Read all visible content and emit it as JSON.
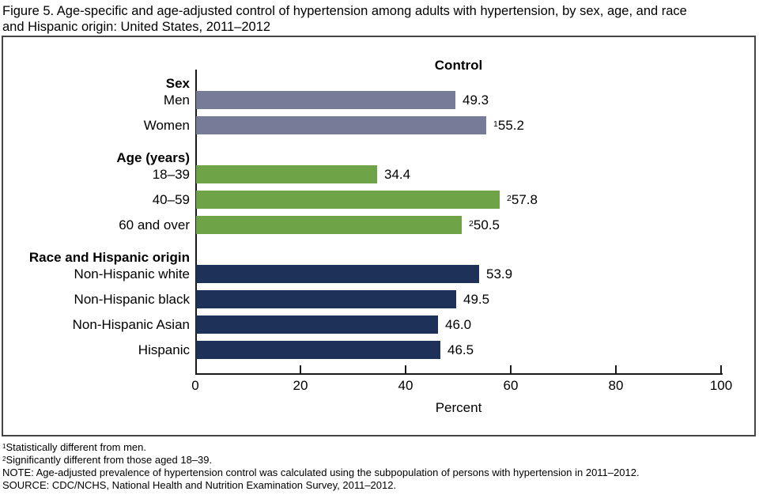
{
  "figure": {
    "title": "Figure 5. Age-specific and age-adjusted control of hypertension among adults with hypertension, by sex, age, and race and Hispanic origin: United States, 2011–2012",
    "title_lines": [
      "Figure 5. Age-specific and age-adjusted control of hypertension among adults with hypertension, by sex, age, and race",
      "and Hispanic origin: United States, 2011–2012"
    ]
  },
  "chart_data": {
    "type": "bar",
    "orientation": "horizontal",
    "panel_title": "Control",
    "xlabel": "Percent",
    "xlim": [
      0,
      100
    ],
    "xticks": [
      0,
      20,
      40,
      60,
      80,
      100
    ],
    "grid": false,
    "legend": "none",
    "axis_color": "#1a1a1a",
    "groups": [
      {
        "header": "Sex",
        "color": "#767b98",
        "bars": [
          {
            "label": "Men",
            "value": 49.3,
            "display": "49.3",
            "sup": ""
          },
          {
            "label": "Women",
            "value": 55.2,
            "display": "55.2",
            "sup": "1"
          }
        ]
      },
      {
        "header": "Age (years)",
        "color": "#6fa347",
        "bars": [
          {
            "label": "18–39",
            "value": 34.4,
            "display": "34.4",
            "sup": ""
          },
          {
            "label": "40–59",
            "value": 57.8,
            "display": "57.8",
            "sup": "2"
          },
          {
            "label": "60 and over",
            "value": 50.5,
            "display": "50.5",
            "sup": "2"
          }
        ]
      },
      {
        "header": "Race and Hispanic origin",
        "color": "#1e3158",
        "bars": [
          {
            "label": "Non-Hispanic white",
            "value": 53.9,
            "display": "53.9",
            "sup": ""
          },
          {
            "label": "Non-Hispanic black",
            "value": 49.5,
            "display": "49.5",
            "sup": ""
          },
          {
            "label": "Non-Hispanic Asian",
            "value": 46.0,
            "display": "46.0",
            "sup": ""
          },
          {
            "label": "Hispanic",
            "value": 46.5,
            "display": "46.5",
            "sup": ""
          }
        ]
      }
    ]
  },
  "footnotes": [
    {
      "sup": "1",
      "text": "Statistically different from men."
    },
    {
      "sup": "2",
      "text": "Significantly different from those aged 18–39."
    },
    {
      "sup": "",
      "text": "NOTE: Age-adjusted prevalence of hypertension control was calculated using the subpopulation of persons with hypertension in 2011–2012."
    },
    {
      "sup": "",
      "text": "SOURCE: CDC/NCHS, National Health and Nutrition Examination Survey, 2011–2012."
    }
  ]
}
